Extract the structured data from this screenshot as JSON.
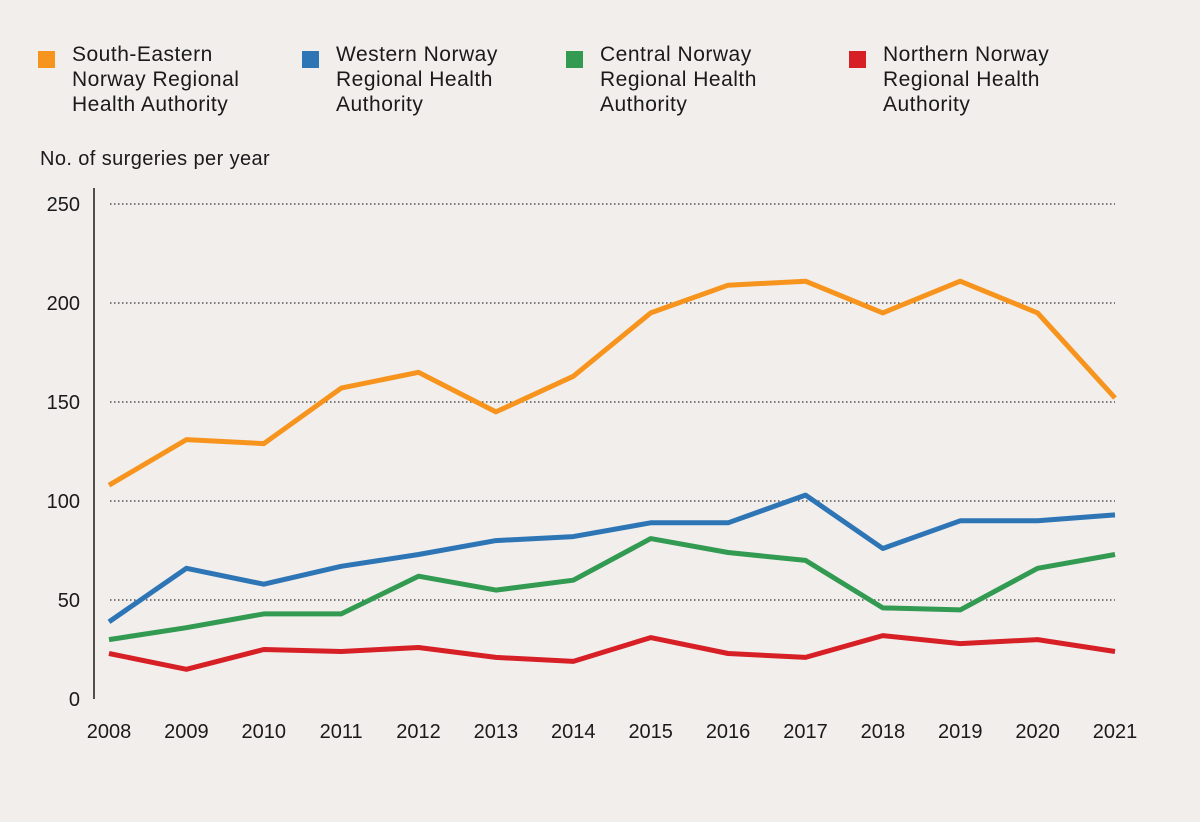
{
  "chart_data": {
    "type": "line",
    "ylabel": "No. of surgeries per year",
    "xlabel": "",
    "ylim": [
      0,
      250
    ],
    "yticks": [
      0,
      50,
      100,
      150,
      200,
      250
    ],
    "grid": "horizontal dotted",
    "legend_placement": "top",
    "x": [
      "2008",
      "2009",
      "2010",
      "2011",
      "2012",
      "2013",
      "2014",
      "2015",
      "2016",
      "2017",
      "2018",
      "2019",
      "2020",
      "2021"
    ],
    "series": [
      {
        "name": "South-Eastern\nNorway Regional\nHealth Authority",
        "color": "#f7941d",
        "values": [
          108,
          131,
          129,
          157,
          165,
          145,
          163,
          195,
          209,
          211,
          195,
          211,
          195,
          152
        ]
      },
      {
        "name": "Western Norway\nRegional Health\nAuthority",
        "color": "#2e75b6",
        "values": [
          39,
          66,
          58,
          67,
          73,
          80,
          82,
          89,
          89,
          103,
          76,
          90,
          90,
          93
        ]
      },
      {
        "name": "Central Norway\nRegional Health\nAuthority",
        "color": "#339a52",
        "values": [
          30,
          36,
          43,
          43,
          62,
          55,
          60,
          81,
          74,
          70,
          46,
          45,
          66,
          73
        ]
      },
      {
        "name": "Northern Norway\nRegional Health\nAuthority",
        "color": "#d71f26",
        "values": [
          23,
          15,
          25,
          24,
          26,
          21,
          19,
          31,
          23,
          21,
          32,
          28,
          30,
          24
        ]
      }
    ]
  }
}
